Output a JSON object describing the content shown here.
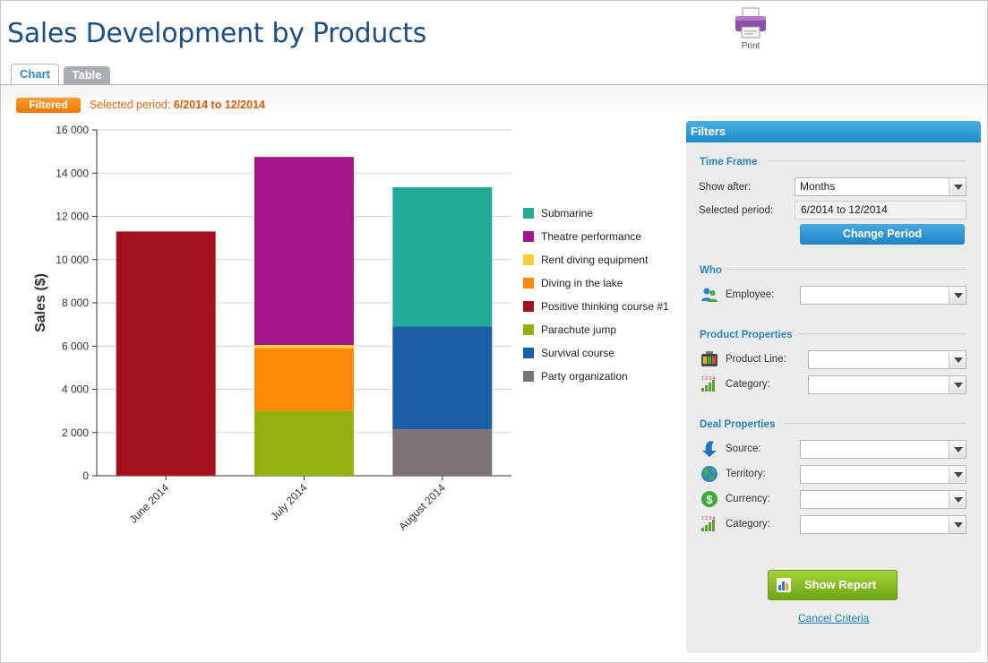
{
  "page": {
    "title": "Sales Development by Products"
  },
  "toolbar": {
    "print_label": "Print"
  },
  "tabs": [
    {
      "label": "Chart",
      "active": true
    },
    {
      "label": "Table",
      "active": false
    }
  ],
  "status": {
    "badge": "Filtered",
    "period_label": "Selected period:",
    "period_value": "6/2014 to 12/2014",
    "badge_color": "#f07800"
  },
  "chart_data": {
    "type": "bar",
    "stacked": true,
    "categories": [
      "June 2014",
      "July 2014",
      "August 2014"
    ],
    "ylabel": "Sales ($)",
    "xlabel": "",
    "ylim": [
      0,
      16000
    ],
    "yticks": [
      0,
      2000,
      4000,
      6000,
      8000,
      10000,
      12000,
      14000,
      16000
    ],
    "ytick_labels": [
      "0",
      "2 000",
      "4 000",
      "6 000",
      "8 000",
      "10 000",
      "12 000",
      "14 000",
      "16 000"
    ],
    "grid": true,
    "legend_position": "right",
    "series": [
      {
        "name": "Submarine",
        "color": "#22aa99",
        "values": [
          0,
          0,
          6450
        ]
      },
      {
        "name": "Theatre performance",
        "color": "#a5148a",
        "values": [
          0,
          8700,
          0
        ]
      },
      {
        "name": "Rent diving equipment",
        "color": "#f5cf3a",
        "values": [
          0,
          150,
          0
        ]
      },
      {
        "name": "Diving in the lake",
        "color": "#ff8a0a",
        "values": [
          0,
          2900,
          0
        ]
      },
      {
        "name": "Positive thinking course #1",
        "color": "#a3111e",
        "values": [
          11300,
          0,
          0
        ]
      },
      {
        "name": "Parachute jump",
        "color": "#93b20e",
        "values": [
          0,
          3000,
          0
        ]
      },
      {
        "name": "Survival course",
        "color": "#1a5fa8",
        "values": [
          0,
          0,
          4750
        ]
      },
      {
        "name": "Party organization",
        "color": "#7d7273",
        "values": [
          0,
          0,
          2150
        ]
      }
    ],
    "stack_order": [
      "Party organization",
      "Survival course",
      "Parachute jump",
      "Positive thinking course #1",
      "Diving in the lake",
      "Rent diving equipment",
      "Theatre performance",
      "Submarine"
    ]
  },
  "filters": {
    "title": "Filters",
    "time_frame": {
      "title": "Time Frame",
      "show_after_label": "Show after:",
      "show_after_value": "Months",
      "selected_period_label": "Selected period:",
      "selected_period_value": "6/2014 to 12/2014",
      "change_button": "Change Period"
    },
    "who": {
      "title": "Who",
      "employee_label": "Employee:",
      "employee_value": ""
    },
    "product": {
      "title": "Product Properties",
      "product_line_label": "Product Line:",
      "category_label": "Category:"
    },
    "deal": {
      "title": "Deal Properties",
      "source_label": "Source:",
      "territory_label": "Territory:",
      "currency_label": "Currency:",
      "category_label": "Category:"
    },
    "show_report": "Show Report",
    "cancel": "Cancel Criteria"
  },
  "icons": {
    "print": "printer-icon",
    "employee": "users-icon",
    "product_line": "product-line-icon",
    "category": "category-icon",
    "source": "arrow-down-icon",
    "territory": "globe-icon",
    "currency": "dollar-coin-icon",
    "show_report": "report-chart-icon"
  }
}
